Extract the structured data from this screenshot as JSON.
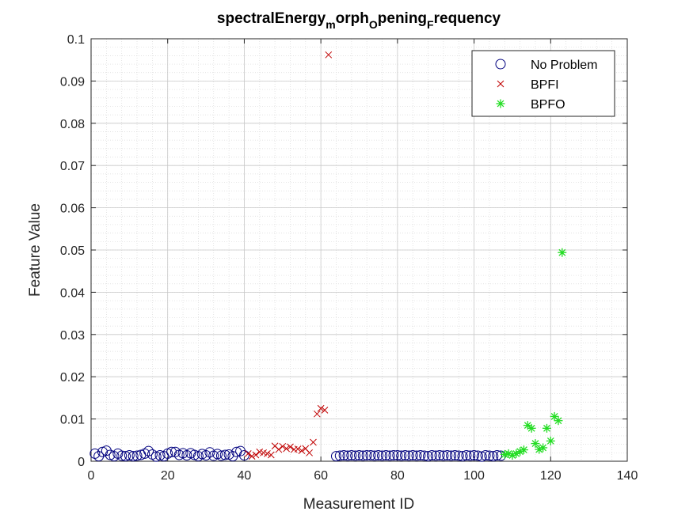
{
  "chart_data": {
    "type": "scatter",
    "title": {
      "parts": [
        {
          "text": "spectralEnergy",
          "sub": false
        },
        {
          "text": "m",
          "sub": true
        },
        {
          "text": "orph",
          "sub": false
        },
        {
          "text": "O",
          "sub": true
        },
        {
          "text": "pening",
          "sub": false
        },
        {
          "text": "F",
          "sub": true
        },
        {
          "text": "requency",
          "sub": false
        }
      ]
    },
    "xlabel": "Measurement ID",
    "ylabel": "Feature Value",
    "xlim": [
      0,
      140
    ],
    "ylim": [
      0,
      0.1
    ],
    "xticks": [
      0,
      20,
      40,
      60,
      80,
      100,
      120,
      140
    ],
    "xtick_labels": [
      "0",
      "20",
      "40",
      "60",
      "80",
      "100",
      "120",
      "140"
    ],
    "yticks": [
      0,
      0.01,
      0.02,
      0.03,
      0.04,
      0.05,
      0.06,
      0.07,
      0.08,
      0.09,
      0.1
    ],
    "ytick_labels": [
      "0",
      "0.01",
      "0.02",
      "0.03",
      "0.04",
      "0.05",
      "0.06",
      "0.07",
      "0.08",
      "0.09",
      "0.1"
    ],
    "grid": true,
    "minor_grid": true,
    "legend_position": "top-right",
    "series": [
      {
        "name": "No Problem",
        "marker": "circle",
        "color": "#00007f",
        "x": [
          1,
          2,
          3,
          4,
          5,
          6,
          7,
          8,
          9,
          10,
          11,
          12,
          13,
          14,
          15,
          16,
          17,
          18,
          19,
          20,
          21,
          22,
          23,
          24,
          25,
          26,
          27,
          28,
          29,
          30,
          31,
          32,
          33,
          34,
          35,
          36,
          37,
          38,
          39,
          40,
          64,
          65,
          66,
          67,
          68,
          69,
          70,
          71,
          72,
          73,
          74,
          75,
          76,
          77,
          78,
          79,
          80,
          81,
          82,
          83,
          84,
          85,
          86,
          87,
          88,
          89,
          90,
          91,
          92,
          93,
          94,
          95,
          96,
          97,
          98,
          99,
          100,
          101,
          102,
          103,
          104,
          105,
          106,
          107
        ],
        "y": [
          0.0018,
          0.0012,
          0.0022,
          0.0025,
          0.0015,
          0.0012,
          0.0018,
          0.0013,
          0.0012,
          0.0014,
          0.0012,
          0.0013,
          0.0015,
          0.0018,
          0.0024,
          0.0016,
          0.0011,
          0.0014,
          0.0012,
          0.0018,
          0.0022,
          0.0022,
          0.0015,
          0.0019,
          0.0014,
          0.0019,
          0.0015,
          0.0012,
          0.0017,
          0.0014,
          0.0021,
          0.0013,
          0.0017,
          0.0013,
          0.0015,
          0.0016,
          0.0012,
          0.0022,
          0.0024,
          0.0014,
          0.0012,
          0.0013,
          0.0014,
          0.0013,
          0.0014,
          0.0013,
          0.0014,
          0.0013,
          0.0014,
          0.0014,
          0.0013,
          0.0014,
          0.0013,
          0.0014,
          0.0013,
          0.0014,
          0.0014,
          0.0013,
          0.0014,
          0.0013,
          0.0014,
          0.0013,
          0.0014,
          0.0013,
          0.0012,
          0.0014,
          0.0013,
          0.0014,
          0.0013,
          0.0014,
          0.0013,
          0.0014,
          0.0013,
          0.0012,
          0.0014,
          0.0013,
          0.0014,
          0.0013,
          0.0011,
          0.0014,
          0.0013,
          0.0012,
          0.0014,
          0.0013
        ]
      },
      {
        "name": "BPFI",
        "marker": "x",
        "color": "#c00000",
        "x": [
          41,
          42,
          43,
          44,
          45,
          46,
          47,
          48,
          49,
          50,
          51,
          52,
          53,
          54,
          55,
          56,
          57,
          58,
          59,
          60,
          61,
          62
        ],
        "y": [
          0.0018,
          0.0012,
          0.0015,
          0.0022,
          0.002,
          0.0018,
          0.0015,
          0.0036,
          0.0028,
          0.0035,
          0.003,
          0.0034,
          0.0028,
          0.0029,
          0.0025,
          0.003,
          0.002,
          0.0045,
          0.0112,
          0.0125,
          0.0121,
          0.0962
        ]
      },
      {
        "name": "BPFO",
        "marker": "asterisk",
        "color": "#22dd22",
        "x": [
          108,
          109,
          110,
          111,
          112,
          113,
          114,
          115,
          116,
          117,
          118,
          119,
          120,
          121,
          122,
          123
        ],
        "y": [
          0.0016,
          0.0018,
          0.0014,
          0.0018,
          0.0023,
          0.0027,
          0.0085,
          0.0078,
          0.0042,
          0.0028,
          0.0032,
          0.0078,
          0.0048,
          0.0106,
          0.0096,
          0.0494
        ]
      }
    ]
  }
}
